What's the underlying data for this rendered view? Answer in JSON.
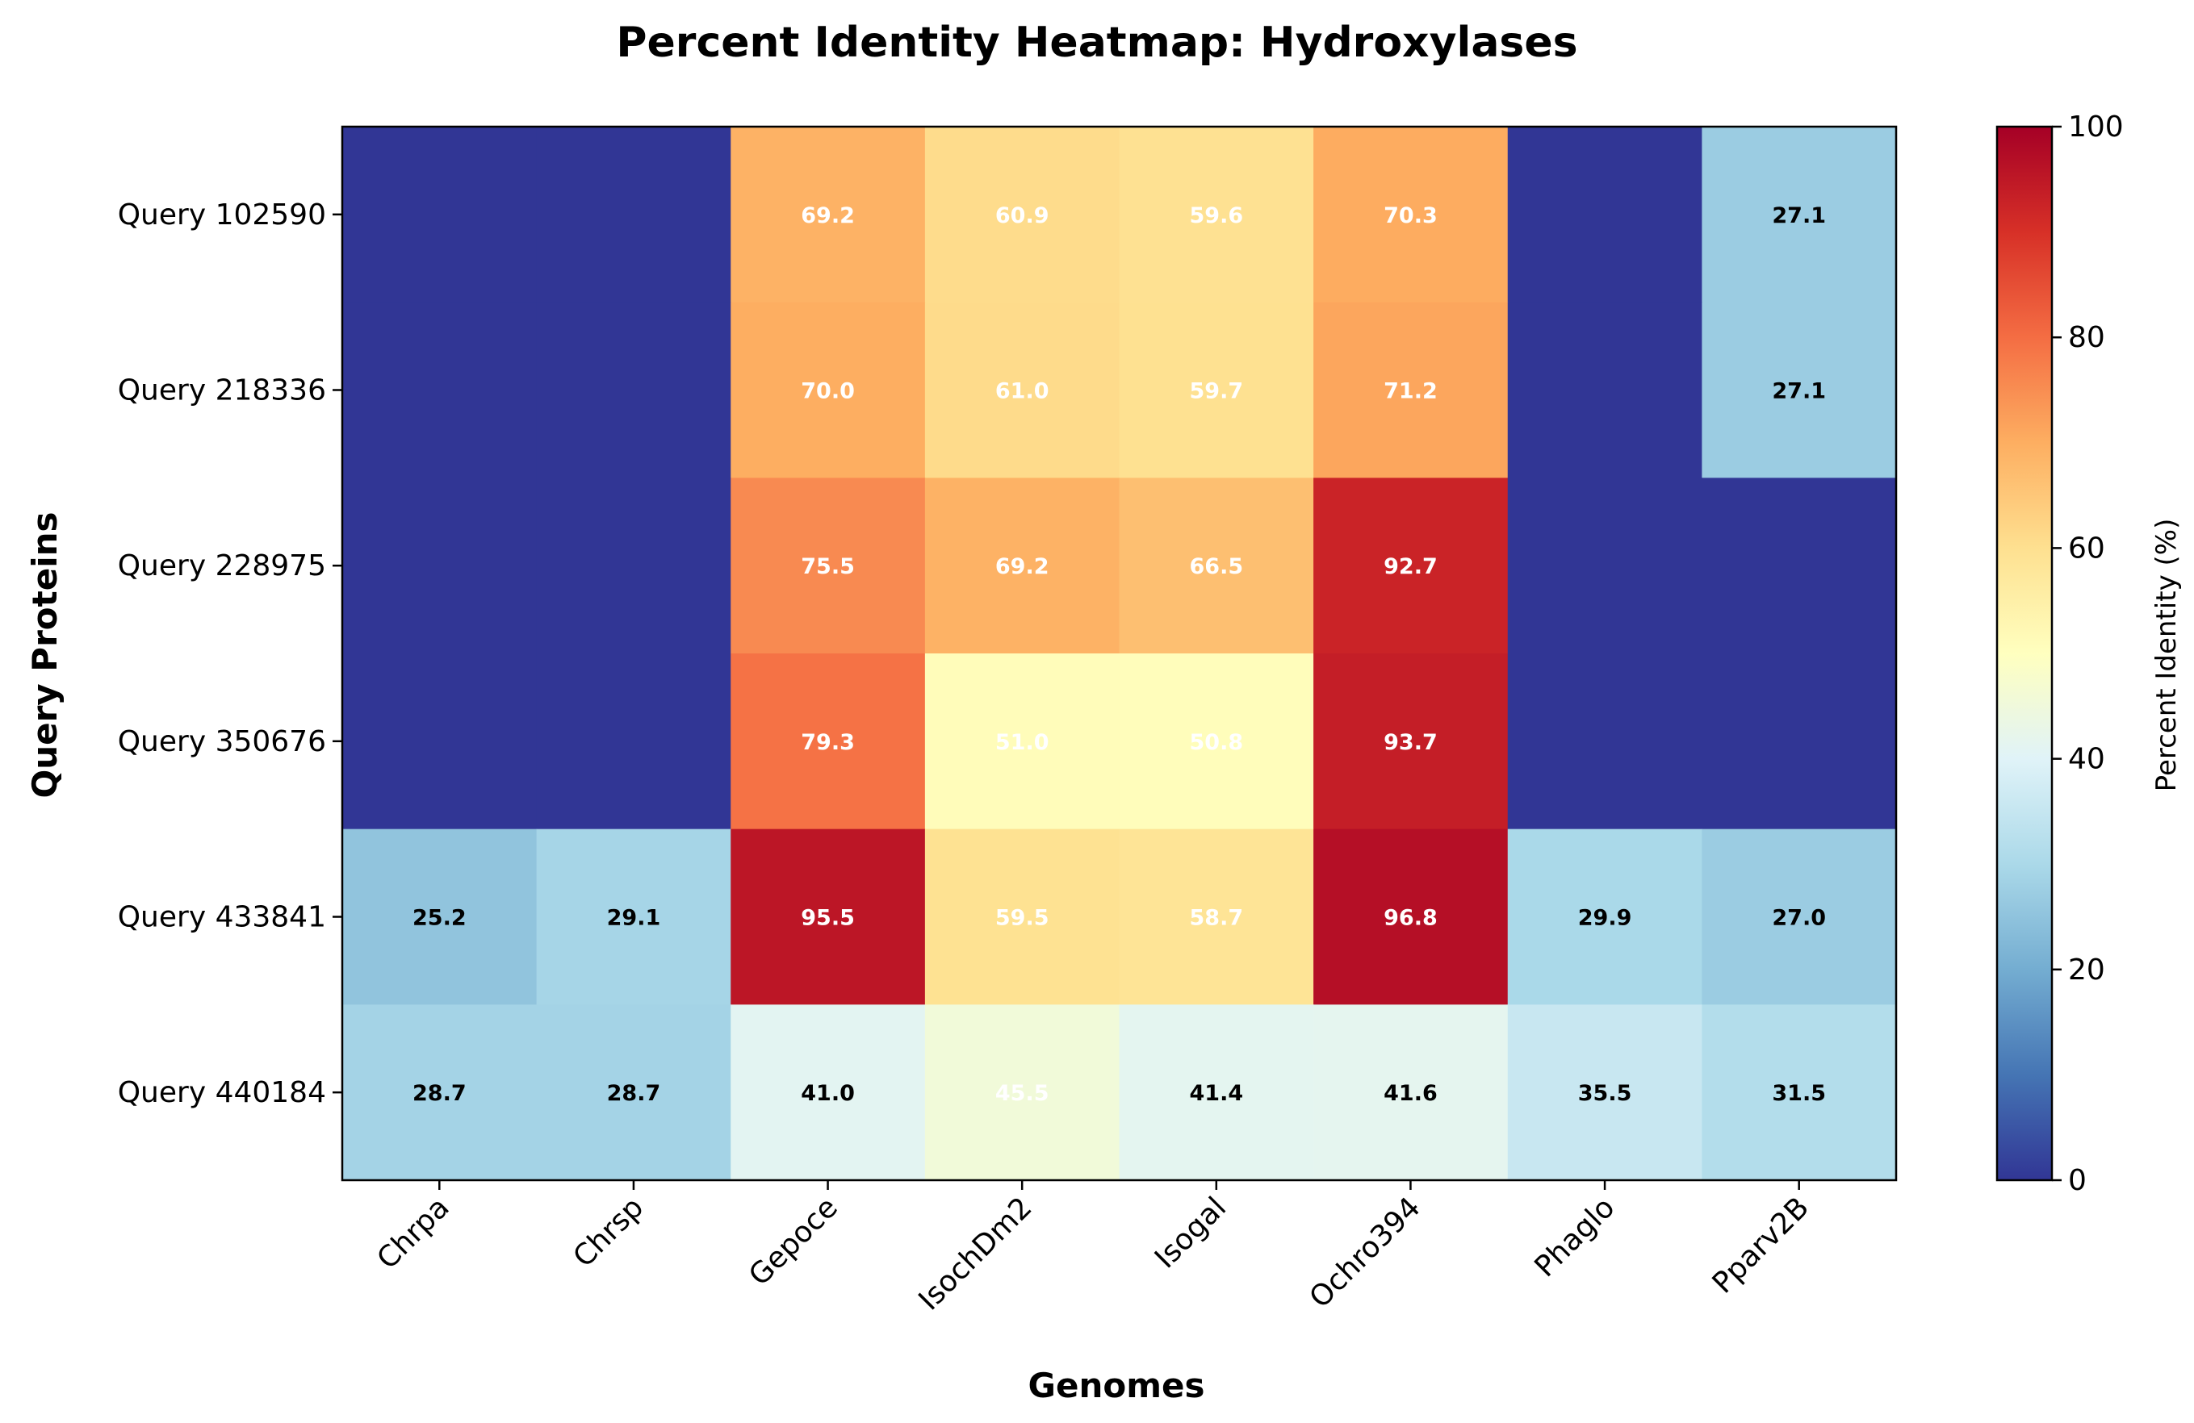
{
  "chart_data": {
    "type": "heatmap",
    "title": "Percent Identity Heatmap: Hydroxylases",
    "xlabel": "Genomes",
    "ylabel": "Query Proteins",
    "columns": [
      "Chrpa",
      "Chrsp",
      "Gepoce",
      "IsochDm2",
      "Isogal",
      "Ochro394",
      "Phaglo",
      "Pparv2B"
    ],
    "rows": [
      "Query 102590",
      "Query 218336",
      "Query 228975",
      "Query 350676",
      "Query 433841",
      "Query 440184"
    ],
    "values": [
      [
        0,
        0,
        69.2,
        60.9,
        59.6,
        70.3,
        0,
        27.1
      ],
      [
        0,
        0,
        70.0,
        61.0,
        59.7,
        71.2,
        0,
        27.1
      ],
      [
        0,
        0,
        75.5,
        69.2,
        66.5,
        92.7,
        0,
        0
      ],
      [
        0,
        0,
        79.3,
        51.0,
        50.8,
        93.7,
        0,
        0
      ],
      [
        25.2,
        29.1,
        95.5,
        59.5,
        58.7,
        96.8,
        29.9,
        27.0
      ],
      [
        28.7,
        28.7,
        41.0,
        45.5,
        41.4,
        41.6,
        35.5,
        31.5
      ]
    ],
    "value_range": [
      0,
      100
    ],
    "colormap": "RdYlBu_r",
    "colorbar": {
      "label": "Percent Identity (%)",
      "ticks": [
        "0",
        "20",
        "40",
        "60",
        "80",
        "100"
      ]
    },
    "annotations": "cell values shown for non-zero cells"
  }
}
